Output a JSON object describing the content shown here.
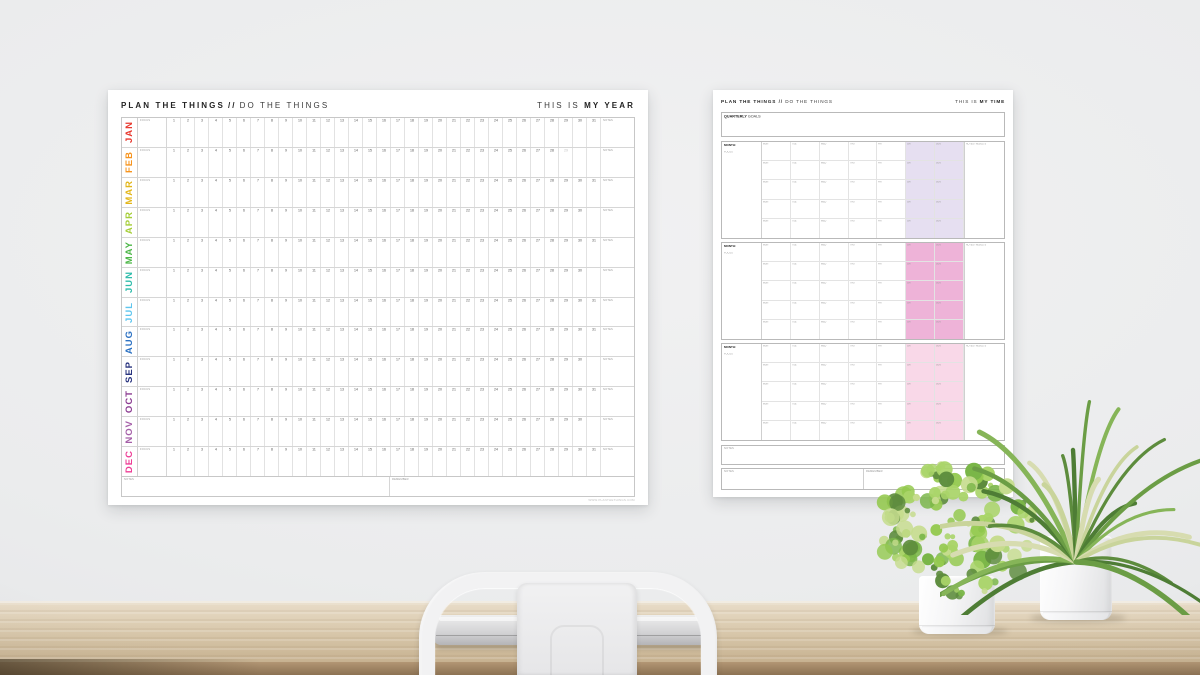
{
  "left_poster": {
    "title_bold": "PLAN THE THINGS",
    "title_sep": "//",
    "title_rest": "DO THE THINGS",
    "tagline_light": "THIS IS",
    "tagline_bold": "MY YEAR",
    "focus_label": "FOCUS",
    "notes_label": "NOTES",
    "footer_left_label": "NOTES",
    "footer_right_label": "REMEMBER",
    "website": "WWW.PLANTHETHINGS.COM",
    "day_columns": 31,
    "months": [
      {
        "name": "JAN",
        "color": "#e8392f",
        "days": 31
      },
      {
        "name": "FEB",
        "color": "#f7941e",
        "days": 28,
        "faint_day": 29
      },
      {
        "name": "MAR",
        "color": "#e3b71c",
        "days": 31
      },
      {
        "name": "APR",
        "color": "#a6ce39",
        "days": 30
      },
      {
        "name": "MAY",
        "color": "#4db748",
        "days": 31
      },
      {
        "name": "JUN",
        "color": "#2fbcab",
        "days": 30
      },
      {
        "name": "JUL",
        "color": "#5fc6ef",
        "days": 31
      },
      {
        "name": "AUG",
        "color": "#2a70c2",
        "days": 31
      },
      {
        "name": "SEP",
        "color": "#28337e",
        "days": 30
      },
      {
        "name": "OCT",
        "color": "#8c3d92",
        "days": 31
      },
      {
        "name": "NOV",
        "color": "#a55fa8",
        "days": 30
      },
      {
        "name": "DEC",
        "color": "#ee3d96",
        "days": 31
      }
    ]
  },
  "right_poster": {
    "title_bold": "PLAN THE THINGS",
    "title_sep": "//",
    "title_rest": "DO THE THINGS",
    "tagline_light": "THIS IS",
    "tagline_bold": "MY TIME",
    "quarterly_bold": "QUARTERLY",
    "quarterly_rest": " GOALS",
    "month_label": "MONTH:",
    "focus_label": "FOCUS",
    "day_headers": [
      "MON",
      "TUE",
      "WED",
      "THU",
      "FRI",
      "SAT",
      "SUN"
    ],
    "notes_results_label": "NOTES / RESULTS",
    "weeks_per_section": 5,
    "sections": [
      {
        "weekend_color": "#e6dff1"
      },
      {
        "weekend_color": "#eeb3d8"
      },
      {
        "weekend_color": "#f9d8e8"
      }
    ],
    "bottom_full_label": "NOTES",
    "bottom_left_label": "NOTES",
    "bottom_right_label": "REMEMBER"
  },
  "scene": {
    "wall_color": "#ebeced",
    "desk_color": "#d7c6a9",
    "chair_color": "#f2f2f3",
    "pot_color": "#f5f5f6",
    "plant_greens": [
      "#5d8c3d",
      "#7ab648",
      "#94c94f",
      "#a9d468",
      "#c6dc8e"
    ],
    "spider_plant_colors": [
      "#4e7d35",
      "#6b9d45",
      "#86b558",
      "#d7dcb0",
      "#c9d49b",
      "#5d8c3d"
    ]
  }
}
